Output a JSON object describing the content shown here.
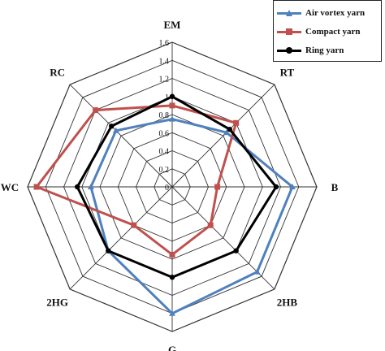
{
  "chart_data": {
    "type": "radar",
    "axes": [
      "EM",
      "RT",
      "B",
      "2HB",
      "G",
      "2HG",
      "WC",
      "RC"
    ],
    "rlim": [
      0,
      1.6
    ],
    "ticks": [
      "0",
      "0.2",
      "0.4",
      "0.6",
      "0.8",
      "1",
      "1.2",
      "1.4",
      "1.6"
    ],
    "grid": true,
    "legend_position": "top-right",
    "series": [
      {
        "name": "Air vortex yarn",
        "color": "#4f81bd",
        "marker": "triangle",
        "values": [
          0.75,
          0.85,
          1.33,
          1.33,
          1.4,
          1.0,
          0.9,
          0.88
        ]
      },
      {
        "name": "Compact yarn",
        "color": "#c0504d",
        "marker": "square",
        "values": [
          0.9,
          1.0,
          0.5,
          0.6,
          0.75,
          0.6,
          1.5,
          1.2
        ]
      },
      {
        "name": "Ring yarn",
        "color": "#000000",
        "marker": "circle",
        "values": [
          1.0,
          0.9,
          1.15,
          1.0,
          1.0,
          1.0,
          1.05,
          0.95
        ]
      }
    ]
  }
}
